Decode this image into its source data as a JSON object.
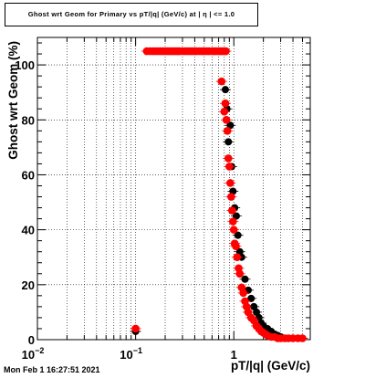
{
  "title": "Ghost wrt Geom for Primary vs pT/|q| (GeV/c) at | η | <= 1.0",
  "timestamp": "Mon Feb  1 16:27:51 2021",
  "colors": {
    "series_black": "#000000",
    "series_red": "#ff0000",
    "grid": "#000000"
  },
  "chart_data": {
    "type": "scatter",
    "title": "Ghost wrt Geom for Primary vs pT/|q| (GeV/c) at | η | <= 1.0",
    "xlabel": "pT/|q| (GeV/c)",
    "ylabel": "Ghost wrt Geom (%)",
    "xscale": "log",
    "xlim": [
      0.01,
      6
    ],
    "ylim": [
      0,
      110
    ],
    "x_tick_labels": [
      {
        "value": 0.01,
        "base": "10",
        "exp": "−2"
      },
      {
        "value": 0.1,
        "base": "10",
        "exp": "−1"
      },
      {
        "value": 1,
        "base": "1",
        "exp": ""
      }
    ],
    "y_ticks": [
      0,
      20,
      40,
      60,
      80,
      100
    ],
    "grid": true,
    "legend": "none",
    "series": [
      {
        "color": "#000000",
        "x": [
          0.1,
          0.82,
          0.85,
          0.88,
          0.92,
          0.95,
          0.98,
          1.02,
          1.06,
          1.1,
          1.15,
          1.2,
          1.3,
          1.4,
          1.5,
          1.6,
          1.7,
          1.8,
          1.9,
          2.0,
          2.2,
          2.4,
          2.6,
          2.8,
          3.0,
          3.3,
          3.6,
          4.0,
          4.5,
          5.0
        ],
        "y": [
          3,
          91,
          84,
          72,
          78,
          63,
          54,
          48,
          45,
          38,
          32,
          30,
          22,
          18,
          15,
          12,
          10,
          8,
          6,
          5,
          4,
          3,
          2,
          1.5,
          1,
          0.5,
          0.5,
          0.5,
          0.5,
          0.5
        ]
      },
      {
        "color": "#ff0000",
        "x": [
          0.1,
          0.13,
          0.14,
          0.15,
          0.16,
          0.17,
          0.18,
          0.19,
          0.2,
          0.21,
          0.22,
          0.23,
          0.24,
          0.25,
          0.26,
          0.27,
          0.28,
          0.3,
          0.32,
          0.34,
          0.36,
          0.38,
          0.4,
          0.42,
          0.45,
          0.48,
          0.5,
          0.53,
          0.56,
          0.6,
          0.63,
          0.66,
          0.7,
          0.73,
          0.76,
          0.8,
          0.83,
          0.75,
          0.8,
          0.82,
          0.84,
          0.86,
          0.88,
          0.9,
          0.92,
          0.94,
          0.96,
          0.98,
          1.0,
          1.02,
          1.05,
          1.08,
          1.12,
          1.15,
          1.2,
          1.25,
          1.3,
          1.35,
          1.4,
          1.5,
          1.6,
          1.7,
          1.8,
          1.9,
          2.0,
          2.1,
          2.2,
          2.4,
          2.6,
          2.8,
          3.0,
          3.3,
          3.6,
          4.0,
          4.5,
          5.0
        ],
        "y": [
          4,
          105,
          105,
          105,
          105,
          105,
          105,
          105,
          105,
          105,
          105,
          105,
          105,
          105,
          105,
          105,
          105,
          105,
          105,
          105,
          105,
          105,
          105,
          105,
          105,
          105,
          105,
          105,
          105,
          105,
          105,
          105,
          105,
          105,
          105,
          105,
          105,
          94,
          83,
          86,
          80,
          76,
          66,
          63,
          57,
          52,
          47,
          43,
          40,
          35,
          34,
          30,
          26,
          24,
          19,
          17,
          14,
          12,
          10,
          8,
          7,
          5,
          4,
          3,
          2.5,
          2,
          1.5,
          1,
          1,
          0.5,
          0.5,
          0.5,
          0.5,
          0.5,
          0.5,
          0.5
        ]
      }
    ]
  }
}
